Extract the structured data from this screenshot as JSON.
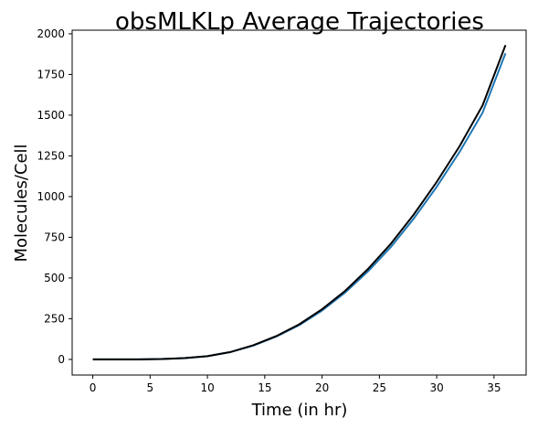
{
  "chart_data": {
    "type": "line",
    "title": "obsMLKLp Average Trajectories",
    "xlabel": "Time (in hr)",
    "ylabel": "Molecules/Cell",
    "xlim": [
      -1.8,
      37.8
    ],
    "ylim": [
      -96,
      2022
    ],
    "xticks": [
      0,
      5,
      10,
      15,
      20,
      25,
      30,
      35
    ],
    "yticks": [
      0,
      250,
      500,
      750,
      1000,
      1250,
      1500,
      1750,
      2000
    ],
    "grid": false,
    "legend": "none",
    "series": [
      {
        "color": "#1f77b4",
        "x": [
          0,
          2,
          4,
          6,
          8,
          10,
          12,
          14,
          16,
          18,
          20,
          22,
          24,
          26,
          28,
          30,
          32,
          34,
          36
        ],
        "y": [
          0,
          0,
          0,
          2,
          8,
          20,
          45,
          85,
          140,
          210,
          300,
          410,
          540,
          690,
          865,
          1060,
          1275,
          1515,
          1880
        ]
      },
      {
        "color": "#000000",
        "x": [
          0,
          2,
          4,
          6,
          8,
          10,
          12,
          14,
          16,
          18,
          20,
          22,
          24,
          26,
          28,
          30,
          32,
          34,
          36
        ],
        "y": [
          0,
          0,
          0,
          2,
          8,
          20,
          45,
          87,
          143,
          215,
          308,
          420,
          555,
          710,
          890,
          1090,
          1310,
          1560,
          1930
        ]
      }
    ]
  }
}
